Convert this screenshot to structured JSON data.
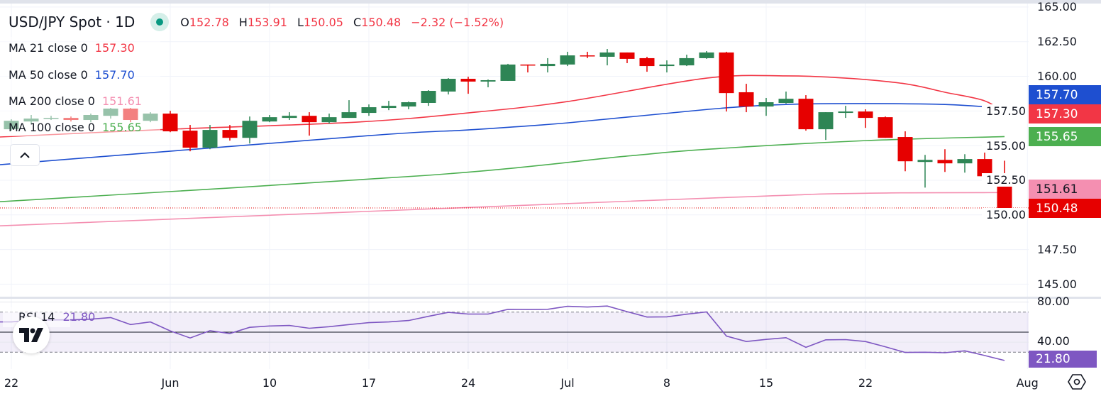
{
  "header": {
    "symbol": "USD/JPY Spot · 1D",
    "open_label": "O",
    "open": "152.78",
    "high_label": "H",
    "high": "153.91",
    "low_label": "L",
    "low": "150.05",
    "close_label": "C",
    "close": "150.48",
    "change": "−2.32 (−1.52%)"
  },
  "legend": {
    "ma21": {
      "label": "MA 21 close 0",
      "value": "157.30",
      "color": "#f23645"
    },
    "ma50": {
      "label": "MA 50 close 0",
      "value": "157.70",
      "color": "#1e4fd0"
    },
    "ma200": {
      "label": "MA 200 close 0",
      "value": "151.61",
      "color": "#f48fb1"
    },
    "ma100": {
      "label": "MA 100 close 0",
      "value": "155.65",
      "color": "#4caf50"
    }
  },
  "rsi_legend": {
    "label": "RSI 14",
    "value": "21.80"
  },
  "badges": {
    "ma50": "157.70",
    "ma21": "157.30",
    "ma100": "155.65",
    "ma200": "151.61",
    "last_price": "150.48",
    "rsi": "21.80"
  },
  "colors": {
    "up": "#2e8555",
    "down": "#e60000",
    "rsi": "#7e57c2",
    "last_price": "#e60000"
  },
  "chart_data": {
    "type": "candlestick",
    "title": "USD/JPY Spot",
    "interval": "1D",
    "price_pane": {
      "ylim": [
        144.1,
        165.25
      ],
      "ticks": [
        "165.00",
        "162.50",
        "160.00",
        "157.50",
        "155.00",
        "152.50",
        "150.00",
        "147.50",
        "145.00"
      ],
      "last_price": 150.48
    },
    "x_ticks": [
      {
        "label": "22",
        "index": 0
      },
      {
        "label": "Jun",
        "index": 8
      },
      {
        "label": "10",
        "index": 13
      },
      {
        "label": "17",
        "index": 18
      },
      {
        "label": "24",
        "index": 23
      },
      {
        "label": "Jul",
        "index": 28
      },
      {
        "label": "8",
        "index": 33
      },
      {
        "label": "15",
        "index": 38
      },
      {
        "label": "22",
        "index": 43
      },
      {
        "label": "Aug",
        "index": 51.15
      }
    ],
    "candles_columns": [
      "date",
      "open",
      "high",
      "low",
      "close"
    ],
    "candles": [
      [
        "May 22",
        156.18,
        156.9,
        156.08,
        156.79
      ],
      [
        "May 23",
        156.74,
        157.21,
        156.59,
        156.95
      ],
      [
        "May 24",
        156.95,
        157.15,
        156.85,
        157.0
      ],
      [
        "May 27",
        157.0,
        157.1,
        156.74,
        156.85
      ],
      [
        "May 28",
        156.85,
        157.31,
        156.69,
        157.21
      ],
      [
        "May 29",
        157.15,
        157.72,
        156.95,
        157.67
      ],
      [
        "May 30",
        157.67,
        157.72,
        156.69,
        156.85
      ],
      [
        "May 31",
        156.79,
        157.41,
        156.69,
        157.31
      ],
      [
        "Jun 3",
        157.31,
        157.51,
        155.97,
        156.03
      ],
      [
        "Jun 4",
        156.08,
        156.49,
        154.59,
        154.85
      ],
      [
        "Jun 5",
        154.85,
        156.49,
        154.74,
        156.13
      ],
      [
        "Jun 6",
        156.13,
        156.49,
        155.36,
        155.56
      ],
      [
        "Jun 7",
        155.56,
        157.1,
        155.15,
        156.79
      ],
      [
        "Jun 10",
        156.74,
        157.21,
        156.69,
        157.05
      ],
      [
        "Jun 11",
        157.0,
        157.41,
        156.85,
        157.15
      ],
      [
        "Jun 12",
        157.15,
        157.41,
        155.72,
        156.69
      ],
      [
        "Jun 13",
        156.69,
        157.31,
        156.59,
        157.05
      ],
      [
        "Jun 14",
        157.0,
        158.28,
        157.0,
        157.41
      ],
      [
        "Jun 17",
        157.36,
        157.97,
        157.15,
        157.77
      ],
      [
        "Jun 18",
        157.72,
        158.23,
        157.56,
        157.87
      ],
      [
        "Jun 19",
        157.82,
        158.18,
        157.62,
        158.13
      ],
      [
        "Jun 20",
        158.08,
        159.0,
        157.87,
        158.95
      ],
      [
        "Jun 21",
        158.9,
        159.87,
        158.69,
        159.82
      ],
      [
        "Jun 24",
        159.82,
        159.97,
        158.74,
        159.62
      ],
      [
        "Jun 25",
        159.62,
        159.77,
        159.21,
        159.72
      ],
      [
        "Jun 26",
        159.67,
        160.9,
        159.67,
        160.85
      ],
      [
        "Jun 27",
        160.85,
        160.85,
        160.28,
        160.79
      ],
      [
        "Jun 28",
        160.74,
        161.31,
        160.28,
        160.9
      ],
      [
        "Jul 1",
        160.85,
        161.77,
        160.74,
        161.51
      ],
      [
        "Jul 2",
        161.51,
        161.77,
        161.31,
        161.46
      ],
      [
        "Jul 3",
        161.41,
        161.97,
        160.79,
        161.72
      ],
      [
        "Jul 4",
        161.72,
        161.72,
        160.95,
        161.26
      ],
      [
        "Jul 5",
        161.31,
        161.41,
        160.33,
        160.74
      ],
      [
        "Jul 8",
        160.74,
        161.15,
        160.28,
        160.85
      ],
      [
        "Jul 9",
        160.79,
        161.56,
        160.74,
        161.31
      ],
      [
        "Jul 10",
        161.31,
        161.82,
        161.26,
        161.72
      ],
      [
        "Jul 11",
        161.72,
        161.77,
        157.46,
        158.79
      ],
      [
        "Jul 12",
        158.85,
        159.46,
        157.41,
        157.82
      ],
      [
        "Jul 15",
        157.82,
        158.44,
        157.15,
        158.13
      ],
      [
        "Jul 16",
        158.08,
        158.9,
        158.03,
        158.38
      ],
      [
        "Jul 17",
        158.38,
        158.64,
        156.08,
        156.18
      ],
      [
        "Jul 18",
        156.18,
        157.41,
        155.41,
        157.41
      ],
      [
        "Jul 19",
        157.36,
        157.87,
        157.0,
        157.46
      ],
      [
        "Jul 22",
        157.46,
        157.62,
        156.28,
        157.0
      ],
      [
        "Jul 23",
        157.05,
        157.1,
        155.56,
        155.56
      ],
      [
        "Jul 24",
        155.62,
        156.03,
        153.15,
        153.87
      ],
      [
        "Jul 25",
        153.82,
        154.33,
        151.97,
        153.97
      ],
      [
        "Jul 26",
        153.97,
        154.74,
        153.1,
        153.72
      ],
      [
        "Jul 29",
        153.72,
        154.38,
        153.05,
        154.03
      ],
      [
        "Jul 30",
        154.03,
        155.26,
        152.69,
        152.79
      ],
      [
        "Jul 31",
        152.78,
        153.91,
        150.05,
        150.48
      ]
    ],
    "moving_averages": [
      {
        "name": "MA 21",
        "color": "#f23645",
        "points": [
          [
            -0.6,
            155.62
          ],
          [
            8,
            156.18
          ],
          [
            17.3,
            156.69
          ],
          [
            23,
            157.36
          ],
          [
            28,
            158.18
          ],
          [
            35,
            159.87
          ],
          [
            39,
            160.03
          ],
          [
            42,
            159.87
          ],
          [
            45,
            159.46
          ],
          [
            47,
            158.85
          ],
          [
            49,
            158.23
          ],
          [
            50,
            157.3
          ]
        ]
      },
      {
        "name": "MA 50",
        "color": "#1e4fd0",
        "points": [
          [
            -0.6,
            153.62
          ],
          [
            18,
            155.72
          ],
          [
            23,
            156.13
          ],
          [
            28,
            156.64
          ],
          [
            35.1,
            157.62
          ],
          [
            39,
            157.97
          ],
          [
            43,
            158.03
          ],
          [
            47,
            157.97
          ],
          [
            50,
            157.7
          ]
        ]
      },
      {
        "name": "MA 100",
        "color": "#4caf50",
        "points": [
          [
            -0.6,
            150.95
          ],
          [
            20.9,
            152.85
          ],
          [
            30.9,
            154.23
          ],
          [
            35.1,
            154.74
          ],
          [
            43,
            155.36
          ],
          [
            50,
            155.65
          ]
        ]
      },
      {
        "name": "MA 200",
        "color": "#f48fb1",
        "points": [
          [
            -0.6,
            149.21
          ],
          [
            35.1,
            151.21
          ],
          [
            43,
            151.56
          ],
          [
            50,
            151.61
          ]
        ]
      }
    ],
    "rsi": {
      "name": "RSI 14",
      "ylim": [
        13.2,
        83.3
      ],
      "upper_band": 70,
      "middle": 50,
      "lower_band": 30,
      "ticks": [
        "80.00",
        "40.00"
      ],
      "values": [
        60.2,
        61.6,
        62.3,
        62.3,
        63.0,
        64.6,
        57.6,
        60.2,
        51.3,
        44.2,
        51.5,
        48.7,
        54.8,
        56.2,
        56.7,
        53.9,
        55.5,
        57.6,
        59.5,
        60.2,
        61.6,
        65.8,
        69.8,
        68.1,
        68.1,
        72.8,
        72.6,
        72.8,
        75.8,
        75.1,
        76.1,
        70.5,
        65.1,
        65.3,
        67.9,
        70.2,
        46.1,
        40.7,
        42.8,
        44.5,
        34.9,
        42.4,
        42.6,
        40.7,
        35.4,
        29.8,
        30.0,
        29.5,
        31.4,
        26.7,
        21.8
      ]
    }
  }
}
